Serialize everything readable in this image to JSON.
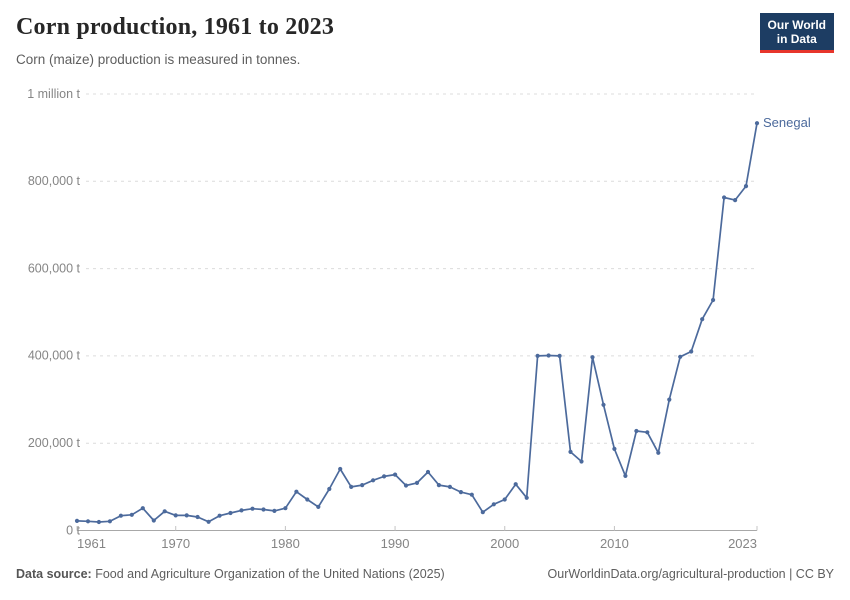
{
  "header": {
    "title": "Corn production, 1961 to 2023",
    "subtitle": "Corn (maize) production is measured in tonnes."
  },
  "logo": {
    "line1": "Our World",
    "line2": "in Data",
    "bg_color": "#1d3d63",
    "accent_color": "#e7352b"
  },
  "chart_data": {
    "type": "line",
    "title": "Corn production, 1961 to 2023",
    "unit": "t",
    "xlim": [
      1961,
      2023
    ],
    "ylim": [
      0,
      1000000
    ],
    "grid": "horizontal-dashed",
    "legend_position": "end-of-line-label",
    "x_ticks": [
      {
        "value": 1961,
        "label": "1961"
      },
      {
        "value": 1970,
        "label": "1970"
      },
      {
        "value": 1980,
        "label": "1980"
      },
      {
        "value": 1990,
        "label": "1990"
      },
      {
        "value": 2000,
        "label": "2000"
      },
      {
        "value": 2010,
        "label": "2010"
      },
      {
        "value": 2023,
        "label": "2023"
      }
    ],
    "y_ticks": [
      {
        "value": 0,
        "label": "0 t"
      },
      {
        "value": 200000,
        "label": "200,000 t"
      },
      {
        "value": 400000,
        "label": "400,000 t"
      },
      {
        "value": 600000,
        "label": "600,000 t"
      },
      {
        "value": 800000,
        "label": "800,000 t"
      },
      {
        "value": 1000000,
        "label": "1 million t"
      }
    ],
    "series": [
      {
        "name": "Senegal",
        "color": "#4C6A9C",
        "years": [
          1961,
          1962,
          1963,
          1964,
          1965,
          1966,
          1967,
          1968,
          1969,
          1970,
          1971,
          1972,
          1973,
          1974,
          1975,
          1976,
          1977,
          1978,
          1979,
          1980,
          1981,
          1982,
          1983,
          1984,
          1985,
          1986,
          1987,
          1988,
          1989,
          1990,
          1991,
          1992,
          1993,
          1994,
          1995,
          1996,
          1997,
          1998,
          1999,
          2000,
          2001,
          2002,
          2003,
          2004,
          2005,
          2006,
          2007,
          2008,
          2009,
          2010,
          2011,
          2012,
          2013,
          2014,
          2015,
          2016,
          2017,
          2018,
          2019,
          2020,
          2021,
          2022,
          2023
        ],
        "values": [
          22000,
          21000,
          19500,
          21000,
          34000,
          36000,
          51000,
          23000,
          44000,
          34500,
          34500,
          31000,
          20000,
          34000,
          40000,
          46000,
          50000,
          48000,
          45000,
          51000,
          89000,
          71000,
          54000,
          95000,
          141000,
          100000,
          104000,
          115000,
          124000,
          128000,
          103000,
          109000,
          134000,
          104000,
          100000,
          88000,
          82000,
          42000,
          60000,
          71000,
          106000,
          75000,
          400000,
          401000,
          400000,
          180000,
          158000,
          397000,
          288000,
          187000,
          125000,
          228000,
          225000,
          178000,
          300000,
          398000,
          410000,
          484000,
          528000,
          763000,
          757000,
          789000,
          933000
        ]
      }
    ]
  },
  "footer": {
    "source_label": "Data source:",
    "source_text": " Food and Agriculture Organization of the United Nations (2025)",
    "link_text": "OurWorldinData.org/agricultural-production | CC BY"
  }
}
